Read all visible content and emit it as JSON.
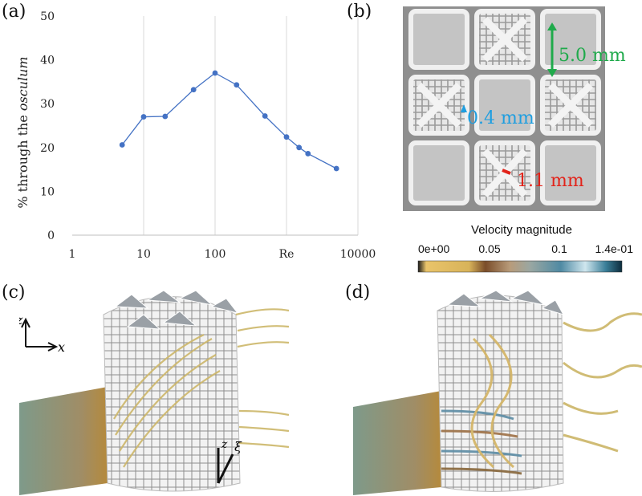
{
  "panels": {
    "a": "(a)",
    "b": "(b)",
    "c": "(c)",
    "d": "(d)"
  },
  "chart_data": {
    "type": "line",
    "log_x": true,
    "xlim": [
      1,
      10000
    ],
    "ylim": [
      0,
      50
    ],
    "xticks": [
      {
        "value": 1,
        "label": "1"
      },
      {
        "value": 10,
        "label": "10"
      },
      {
        "value": 100,
        "label": "100"
      },
      {
        "value": 1000,
        "label": "Re"
      },
      {
        "value": 10000,
        "label": "10000"
      }
    ],
    "yticks": [
      0,
      10,
      20,
      30,
      40,
      50
    ],
    "ylabel_prefix": "% through the ",
    "ylabel_italic": "osculum",
    "grid": "vertical",
    "color": "#4472c4",
    "series": [
      {
        "x": [
          5,
          10,
          20,
          50,
          100,
          200,
          500,
          1000,
          1500,
          2000,
          5000
        ],
        "y": [
          20.6,
          27.0,
          27.1,
          33.2,
          37.0,
          34.3,
          27.2,
          22.4,
          20.0,
          18.6,
          15.2
        ]
      }
    ]
  },
  "lattice": {
    "dim_large": "5.0 mm",
    "dim_medium": "0.4 mm",
    "dim_small": "1.1 mm",
    "color_large": "#1faa4b",
    "color_medium": "#1e9ee0",
    "color_small": "#e2231a"
  },
  "colorbar": {
    "title": "Velocity magnitude",
    "ticks": [
      "0e+00",
      "0.05",
      "0.1",
      "1.4e-01"
    ]
  },
  "axes_glyph": {
    "z": "z",
    "x": "x",
    "z2": "z",
    "xi": "ξ"
  }
}
